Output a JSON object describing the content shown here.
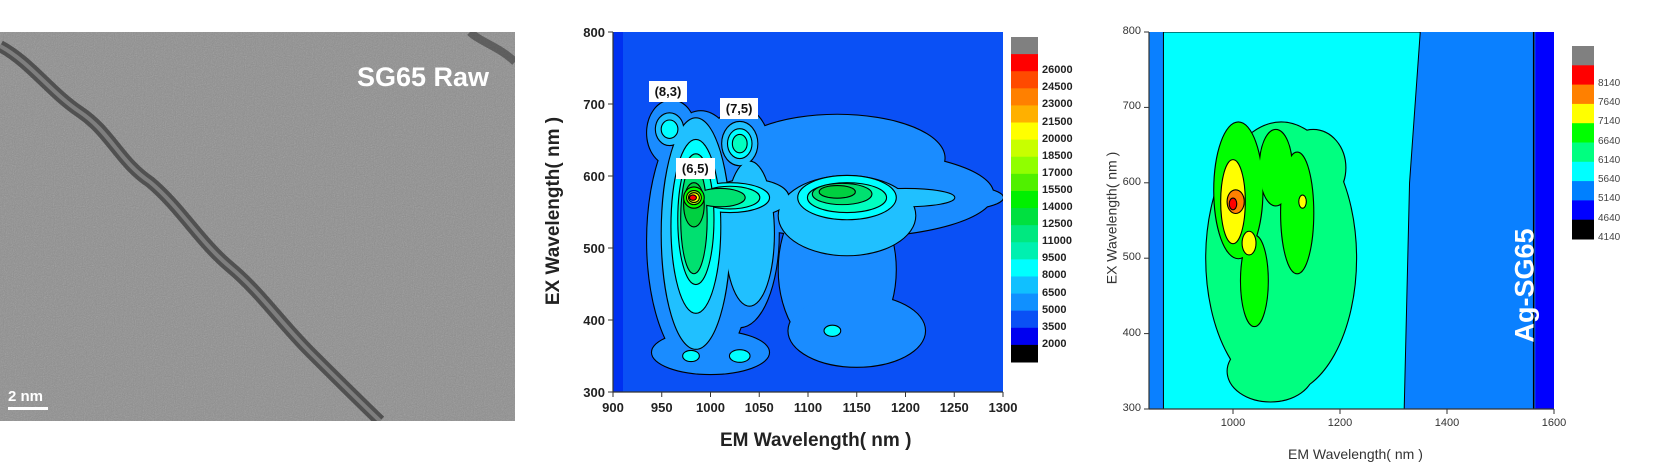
{
  "panel_a": {
    "label": "SG65 Raw",
    "scale_bar": "2 nm"
  },
  "chart_data": [
    {
      "type": "heatmap",
      "subtype": "contour",
      "xlabel": "EM Wavelength( nm )",
      "ylabel": "EX Wavelength( nm )",
      "xlim": [
        900,
        1300
      ],
      "ylim": [
        300,
        800
      ],
      "x_ticks": [
        "900",
        "950",
        "1000",
        "1050",
        "1100",
        "1150",
        "1200",
        "1250",
        "1300"
      ],
      "y_ticks": [
        "300",
        "400",
        "500",
        "600",
        "700",
        "800"
      ],
      "legend_labels": [
        "26000",
        "24500",
        "23000",
        "21500",
        "20000",
        "18500",
        "17000",
        "15500",
        "14000",
        "12500",
        "11000",
        "9500",
        "8000",
        "6500",
        "5000",
        "3500",
        "2000"
      ],
      "legend_colors": [
        "#808080",
        "#ff0000",
        "#ff4a00",
        "#ff8000",
        "#ffb000",
        "#ffff00",
        "#c8ff00",
        "#90ff00",
        "#50f000",
        "#00f000",
        "#00e040",
        "#00e880",
        "#00f0b0",
        "#00ffff",
        "#10c0ff",
        "#1090ff",
        "#0a50f5",
        "#0000f0",
        "#000000"
      ],
      "background_color": "#0a50f5",
      "annotations": [
        {
          "text": "(8,3)",
          "em": 957,
          "ex": 665
        },
        {
          "text": "(7,5)",
          "em": 1030,
          "ex": 645
        },
        {
          "text": "(6,5)",
          "em": 983,
          "ex": 570
        }
      ],
      "contours": [
        {
          "color": "#1a8cff",
          "blobs": [
            [
              990,
              510,
              55,
              180
            ],
            [
              1030,
              520,
              40,
              130
            ],
            [
              960,
              660,
              25,
              45
            ],
            [
              1030,
              640,
              30,
              55
            ],
            [
              1130,
              470,
              60,
              120
            ],
            [
              1140,
              575,
              150,
              60
            ],
            [
              1220,
              570,
              80,
              20
            ],
            [
              1130,
              625,
              110,
              60
            ],
            [
              1150,
              385,
              70,
              50
            ],
            [
              1000,
              355,
              60,
              30
            ]
          ]
        },
        {
          "color": "#20c0ff",
          "blobs": [
            [
              985,
              520,
              35,
              160
            ],
            [
              1040,
              520,
              25,
              100
            ],
            [
              1030,
              645,
              18,
              30
            ],
            [
              958,
              665,
              14,
              22
            ],
            [
              1140,
              545,
              70,
              55
            ],
            [
              1200,
              570,
              50,
              12
            ],
            [
              1040,
              570,
              40,
              25
            ]
          ]
        },
        {
          "color": "#00ffff",
          "blobs": [
            [
              985,
              530,
              25,
              120
            ],
            [
              1020,
              570,
              40,
              20
            ],
            [
              1030,
              645,
              12,
              20
            ],
            [
              958,
              665,
              8,
              12
            ],
            [
              1140,
              570,
              50,
              30
            ],
            [
              980,
              350,
              8,
              7
            ],
            [
              1125,
              385,
              8,
              7
            ],
            [
              1030,
              350,
              10,
              8
            ]
          ]
        },
        {
          "color": "#00ffc0",
          "blobs": [
            [
              985,
              540,
              18,
              90
            ],
            [
              1020,
              570,
              30,
              15
            ],
            [
              1030,
              645,
              7,
              12
            ],
            [
              1140,
              570,
              40,
              20
            ]
          ]
        },
        {
          "color": "#00e070",
          "blobs": [
            [
              983,
              540,
              13,
              75
            ],
            [
              1010,
              570,
              25,
              12
            ],
            [
              1135,
              575,
              30,
              14
            ]
          ]
        },
        {
          "color": "#00d040",
          "blobs": [
            [
              983,
              560,
              10,
              30
            ],
            [
              1130,
              578,
              18,
              8
            ]
          ]
        },
        {
          "color": "#00ff00",
          "blobs": [
            [
              983,
              570,
              10,
              14
            ]
          ]
        },
        {
          "color": "#a0ff00",
          "blobs": [
            [
              983,
              570,
              7,
              9
            ]
          ]
        },
        {
          "color": "#ffff00",
          "blobs": [
            [
              983,
              570,
              5,
              6
            ]
          ]
        },
        {
          "color": "#ff0000",
          "blobs": [
            [
              982,
              570,
              3,
              3
            ]
          ]
        }
      ]
    },
    {
      "type": "heatmap",
      "subtype": "contour",
      "title": "Ag-SG65",
      "xlabel": "EM Wavelength( nm )",
      "ylabel": "EX Wavelength( nm )",
      "xlim": [
        843,
        1600
      ],
      "ylim": [
        300,
        800
      ],
      "x_ticks": [
        "1000",
        "1200",
        "1400",
        "1600"
      ],
      "y_ticks": [
        "300",
        "400",
        "500",
        "600",
        "700",
        "800"
      ],
      "legend_labels": [
        "8140",
        "7640",
        "7140",
        "6640",
        "6140",
        "5640",
        "5140",
        "4640",
        "4140"
      ],
      "legend_colors": [
        "#808080",
        "#ff0000",
        "#ff8000",
        "#ffff00",
        "#00ff00",
        "#00ff80",
        "#00ffff",
        "#0080ff",
        "#0000ff",
        "#000000"
      ],
      "background_color": "#0a80ff",
      "contours": [
        {
          "color": "#00ff80",
          "blobs": [
            [
              1090,
              500,
              140,
              180
            ],
            [
              1070,
              350,
              80,
              40
            ],
            [
              1150,
              620,
              60,
              50
            ]
          ]
        },
        {
          "color": "#00ff00",
          "blobs": [
            [
              1010,
              590,
              45,
              90
            ],
            [
              1080,
              620,
              30,
              50
            ],
            [
              1120,
              560,
              30,
              80
            ],
            [
              1040,
              470,
              25,
              60
            ]
          ]
        },
        {
          "color": "#ffff00",
          "blobs": [
            [
              1000,
              575,
              22,
              55
            ],
            [
              1030,
              520,
              12,
              15
            ],
            [
              1130,
              575,
              6,
              8
            ]
          ]
        },
        {
          "color": "#ff8000",
          "blobs": [
            [
              1005,
              575,
              15,
              15
            ]
          ]
        },
        {
          "color": "#ff0000",
          "blobs": [
            [
              1000,
              572,
              6,
              7
            ]
          ]
        }
      ]
    }
  ]
}
